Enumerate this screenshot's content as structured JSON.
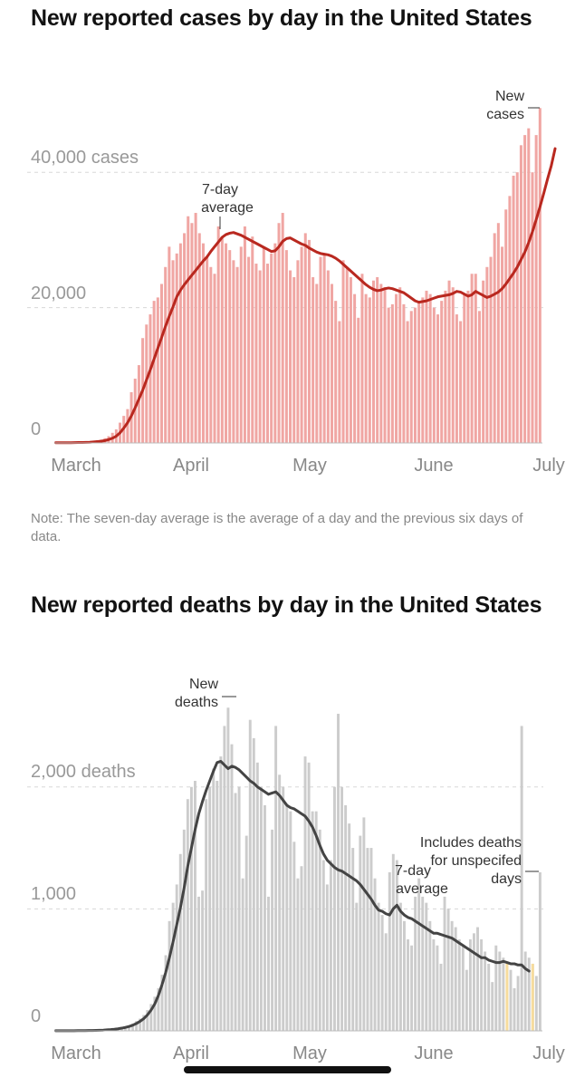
{
  "cases": {
    "title": "New reported cases by day in the United States",
    "note": "Note: The seven-day average is the average of a day and the previous six days of data.",
    "y_tick_labels": [
      "0",
      "20,000",
      "40,000 cases"
    ],
    "x_tick_labels": [
      "March",
      "April",
      "May",
      "June",
      "July"
    ],
    "annotations": {
      "bars_label": [
        "New",
        "cases"
      ],
      "line_label": [
        "7-day",
        "average"
      ]
    }
  },
  "deaths": {
    "title": "New reported deaths by day in the United States",
    "y_tick_labels": [
      "0",
      "1,000",
      "2,000 deaths"
    ],
    "x_tick_labels": [
      "March",
      "April",
      "May",
      "June",
      "July"
    ],
    "annotations": {
      "bars_label": [
        "New",
        "deaths"
      ],
      "line_label": [
        "7-day",
        "average"
      ],
      "highlight_label": [
        "Includes deaths",
        "for unspecifed",
        "days"
      ]
    }
  },
  "chart_data": [
    {
      "type": "bar",
      "title": "New reported cases by day in the United States",
      "xlabel": "",
      "ylabel": "",
      "ylim": [
        0,
        50000
      ],
      "xlim": [
        "2020-03-01",
        "2020-07-01"
      ],
      "grid": true,
      "x_tick_labels": [
        "March",
        "April",
        "May",
        "June",
        "July"
      ],
      "y_ticks": [
        0,
        20000,
        40000
      ],
      "series": [
        {
          "name": "New cases",
          "kind": "bar",
          "color": "#f0a6a3",
          "values": [
            40,
            30,
            40,
            50,
            40,
            60,
            100,
            110,
            130,
            200,
            300,
            400,
            500,
            700,
            1000,
            1500,
            2000,
            3000,
            4000,
            5000,
            7500,
            9500,
            11500,
            15500,
            17500,
            19000,
            21000,
            21500,
            23500,
            26000,
            29000,
            27000,
            28000,
            29500,
            31000,
            33500,
            32500,
            34000,
            31000,
            29500,
            27500,
            26000,
            25000,
            32000,
            30500,
            29500,
            28500,
            27000,
            26000,
            29000,
            32000,
            27500,
            30500,
            26500,
            25500,
            29000,
            26500,
            28000,
            29500,
            32500,
            34000,
            28500,
            25500,
            24500,
            27000,
            29000,
            31000,
            30000,
            24500,
            23500,
            27500,
            28000,
            25500,
            23500,
            21000,
            18000,
            27000,
            26000,
            24500,
            22000,
            18500,
            25000,
            22000,
            21500,
            24000,
            24500,
            23500,
            23000,
            20000,
            20500,
            22000,
            23000,
            20500,
            18000,
            19500,
            20000,
            21000,
            21500,
            22500,
            22000,
            20000,
            19000,
            21000,
            22500,
            24000,
            23000,
            19000,
            18000,
            22000,
            22500,
            25000,
            25000,
            19500,
            24000,
            26000,
            27500,
            31000,
            32500,
            29000,
            34500,
            36500,
            39500,
            40000,
            44000,
            45500,
            46500,
            40000,
            45500,
            49500
          ]
        },
        {
          "name": "7-day average",
          "kind": "line",
          "color": "#b9281f",
          "values": [
            40,
            40,
            40,
            40,
            40,
            50,
            60,
            70,
            80,
            100,
            150,
            200,
            250,
            350,
            500,
            700,
            1000,
            1500,
            2200,
            3000,
            4000,
            5200,
            6500,
            7800,
            9300,
            10800,
            12400,
            14000,
            15600,
            17200,
            18700,
            20100,
            21600,
            22600,
            23400,
            24100,
            24800,
            25500,
            26200,
            26900,
            27500,
            28300,
            29000,
            29700,
            30400,
            30800,
            31000,
            31100,
            30900,
            30700,
            30400,
            30100,
            29800,
            29500,
            29200,
            28900,
            28600,
            28300,
            28400,
            29000,
            29800,
            30200,
            30300,
            30000,
            29700,
            29400,
            29200,
            28800,
            28500,
            28200,
            28000,
            27900,
            27800,
            27600,
            27300,
            26900,
            26400,
            25900,
            25400,
            24900,
            24400,
            23900,
            23400,
            23000,
            22700,
            22500,
            22600,
            22800,
            22900,
            22800,
            22600,
            22400,
            22200,
            21800,
            21400,
            21000,
            20800,
            20900,
            21000,
            21200,
            21400,
            21600,
            21700,
            21800,
            21900,
            22100,
            22400,
            22300,
            22000,
            21700,
            21900,
            22400,
            22100,
            21800,
            21500,
            21700,
            22000,
            22300,
            22800,
            23500,
            24300,
            25100,
            26000,
            27100,
            28200,
            29600,
            31200,
            33000,
            34900,
            36900,
            39000,
            41000,
            43500
          ]
        }
      ]
    },
    {
      "type": "bar",
      "title": "New reported deaths by day in the United States",
      "xlabel": "",
      "ylabel": "",
      "ylim": [
        0,
        2700
      ],
      "xlim": [
        "2020-03-01",
        "2020-07-01"
      ],
      "grid": true,
      "x_tick_labels": [
        "March",
        "April",
        "May",
        "June",
        "July"
      ],
      "y_ticks": [
        0,
        1000,
        2000
      ],
      "series": [
        {
          "name": "New deaths",
          "kind": "bar",
          "color": "#cccccc",
          "values": [
            1,
            1,
            1,
            1,
            1,
            2,
            2,
            2,
            3,
            3,
            4,
            5,
            6,
            8,
            10,
            12,
            15,
            20,
            25,
            35,
            45,
            60,
            80,
            100,
            130,
            170,
            220,
            280,
            350,
            460,
            620,
            900,
            1050,
            1200,
            1450,
            1650,
            1900,
            2000,
            2050,
            1100,
            1150,
            1900,
            2000,
            2150,
            2050,
            2250,
            2500,
            2650,
            2350,
            1950,
            2000,
            1250,
            1600,
            2550,
            2400,
            2200,
            2000,
            1850,
            1100,
            1650,
            2500,
            2100,
            2000,
            1850,
            1800,
            1550,
            1250,
            1350,
            2250,
            2200,
            1800,
            1800,
            1650,
            1400,
            1200,
            1400,
            2000,
            2600,
            2000,
            1850,
            1700,
            1500,
            1050,
            1600,
            1750,
            1500,
            1500,
            1250,
            1050,
            950,
            800,
            1300,
            1450,
            1400,
            1050,
            900,
            750,
            700,
            1100,
            1250,
            1100,
            1050,
            900,
            750,
            700,
            550,
            1100,
            1000,
            900,
            850,
            750,
            700,
            500,
            750,
            800,
            850,
            750,
            650,
            550,
            400,
            700,
            650,
            600,
            550,
            500,
            350,
            450,
            2500,
            650,
            600,
            550,
            450,
            1300
          ]
        },
        {
          "name": "7-day average",
          "kind": "line",
          "color": "#444444",
          "values": [
            1,
            1,
            1,
            1,
            1,
            1,
            2,
            2,
            2,
            3,
            3,
            4,
            5,
            6,
            8,
            10,
            13,
            17,
            22,
            28,
            36,
            46,
            60,
            78,
            100,
            130,
            170,
            220,
            290,
            380,
            480,
            600,
            730,
            870,
            1010,
            1170,
            1350,
            1500,
            1650,
            1780,
            1880,
            1970,
            2050,
            2130,
            2200,
            2210,
            2180,
            2150,
            2170,
            2160,
            2140,
            2110,
            2080,
            2050,
            2030,
            2000,
            1980,
            1960,
            1940,
            1950,
            1960,
            1930,
            1890,
            1850,
            1830,
            1820,
            1800,
            1780,
            1760,
            1720,
            1670,
            1600,
            1520,
            1450,
            1400,
            1370,
            1340,
            1320,
            1310,
            1290,
            1270,
            1250,
            1230,
            1200,
            1160,
            1120,
            1080,
            1030,
            990,
            980,
            960,
            950,
            1000,
            1030,
            980,
            950,
            930,
            920,
            900,
            880,
            860,
            840,
            820,
            800,
            800,
            790,
            780,
            770,
            760,
            740,
            720,
            700,
            680,
            660,
            640,
            620,
            600,
            600,
            580,
            570,
            560,
            560,
            570,
            560,
            550,
            550,
            540,
            540,
            510,
            490
          ]
        }
      ],
      "highlighted_days": [
        123,
        130
      ]
    }
  ]
}
